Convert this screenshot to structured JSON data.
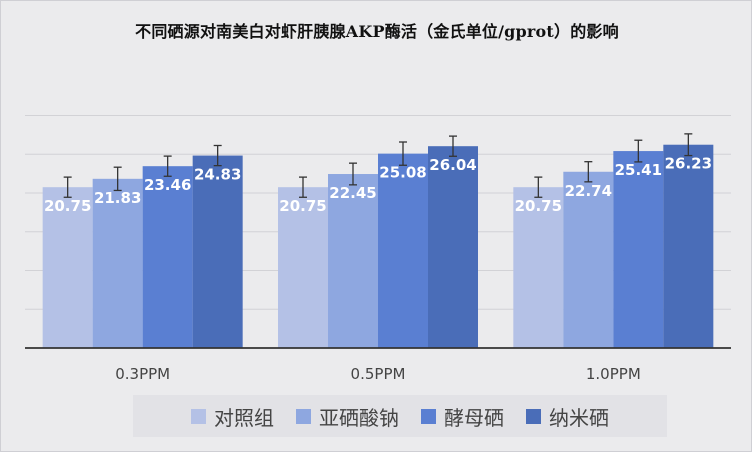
{
  "chart_data": {
    "type": "bar",
    "title": "不同硒源对南美白对虾肝胰腺AKP酶活（金氏单位/gprot）的影响",
    "categories": [
      "0.3PPM",
      "0.5PPM",
      "1.0PPM"
    ],
    "series": [
      {
        "name": "对照组",
        "values": [
          20.75,
          20.75,
          20.75
        ],
        "color": "#b4c1e6",
        "error": [
          1.3,
          1.3,
          1.3
        ]
      },
      {
        "name": "亚硒酸钠",
        "values": [
          21.83,
          22.45,
          22.74
        ],
        "color": "#8ea7e0",
        "error": [
          1.5,
          1.4,
          1.3
        ]
      },
      {
        "name": "酵母硒",
        "values": [
          23.46,
          25.08,
          25.41
        ],
        "color": "#5a7fd2",
        "error": [
          1.3,
          1.5,
          1.4
        ]
      },
      {
        "name": "纳米硒",
        "values": [
          24.83,
          26.04,
          26.23
        ],
        "color": "#4a6db8",
        "error": [
          1.3,
          1.3,
          1.4
        ]
      }
    ],
    "xlabel": "",
    "ylabel": "",
    "ylim": [
      0,
      30
    ],
    "y_tick_labels_visible": false,
    "grid": true,
    "legend_position": "bottom"
  }
}
